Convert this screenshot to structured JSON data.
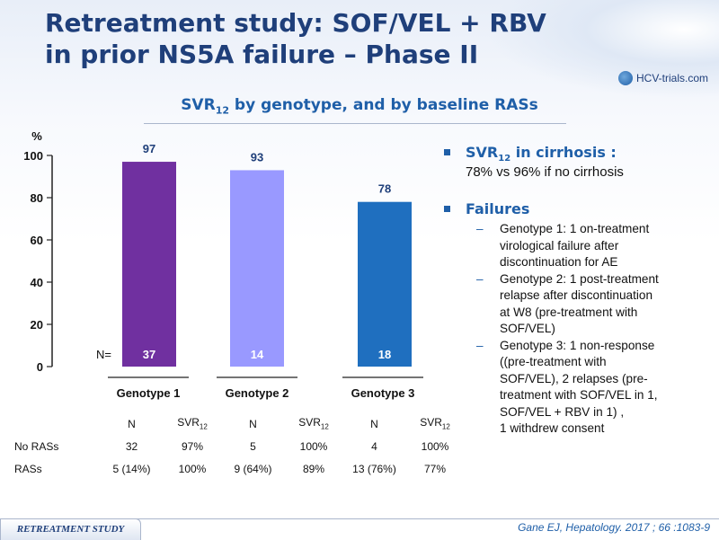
{
  "title": {
    "line1": "Retreatment study: SOF/VEL + RBV",
    "line2": "in prior NS5A failure – Phase II"
  },
  "logo": {
    "text": "HCV-trials.com"
  },
  "subtitle": {
    "pre": "SVR",
    "sub": "12",
    "post": " by genotype, and by baseline RASs"
  },
  "chart_data": {
    "type": "bar",
    "categories": [
      "Genotype 1",
      "Genotype 2",
      "Genotype 3"
    ],
    "values": [
      97,
      93,
      78
    ],
    "n_label": "N=",
    "n_values": [
      37,
      14,
      18
    ],
    "ylabel": "%",
    "ylim": [
      0,
      100
    ],
    "yticks": [
      0,
      20,
      40,
      60,
      80,
      100
    ],
    "colors": [
      "#7030a0",
      "#9999ff",
      "#1f6fbf"
    ],
    "grid": false
  },
  "stats": {
    "col_headers": [
      "N",
      "SVR",
      "N",
      "SVR",
      "N",
      "SVR"
    ],
    "svr_sub": "12",
    "rows": [
      {
        "label": "No RASs",
        "cells": [
          "32",
          "97%",
          "5",
          "100%",
          "4",
          "100%"
        ]
      },
      {
        "label": "RASs",
        "cells": [
          "5 (14%)",
          "100%",
          "9 (64%)",
          "89%",
          "13 (76%)",
          "77%"
        ]
      }
    ]
  },
  "bullets": {
    "cirrhosis": {
      "head_pre": "SVR",
      "head_sub": "12",
      "head_post": " in cirrhosis :",
      "text": "78% vs 96% if no cirrhosis"
    },
    "failures": {
      "head": "Failures",
      "items": [
        [
          "Genotype 1: 1 on-treatment",
          "virological failure after",
          "discontinuation for AE"
        ],
        [
          "Genotype 2: 1 post-treatment",
          "relapse after discontinuation",
          "at W8 (pre-treatment with",
          "SOF/VEL)"
        ],
        [
          "Genotype 3: 1 non-response",
          "((pre-treatment with",
          "SOF/VEL), 2 relapses (pre-",
          "treatment with SOF/VEL in 1,",
          "SOF/VEL + RBV in 1) ,",
          "1 withdrew consent"
        ]
      ]
    }
  },
  "footer": {
    "tab": "RETREATMENT STUDY",
    "citation": "Gane EJ, Hepatology. 2017 ; 66 :1083-9"
  }
}
